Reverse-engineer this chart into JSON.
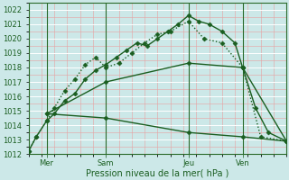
{
  "xlabel": "Pression niveau de la mer( hPa )",
  "ylim": [
    1012,
    1022.5
  ],
  "xlim": [
    0,
    100
  ],
  "bg_color": "#cce8e8",
  "line_color": "#1a5e20",
  "xtick_positions": [
    7,
    30,
    62,
    83
  ],
  "xtick_labels": [
    "Mer",
    "Sam",
    "Jeu",
    "Ven"
  ],
  "ytick_values": [
    1012,
    1013,
    1014,
    1015,
    1016,
    1017,
    1018,
    1019,
    1020,
    1021,
    1022
  ],
  "vline_positions": [
    7,
    30,
    62,
    83
  ],
  "lines": [
    {
      "x": [
        0,
        3,
        7,
        10,
        14,
        18,
        22,
        26,
        30,
        34,
        38,
        42,
        46,
        50,
        54,
        58,
        62,
        66,
        70,
        75,
        80,
        83,
        88,
        93,
        100
      ],
      "y": [
        1012.2,
        1013.2,
        1014.3,
        1014.8,
        1015.7,
        1016.2,
        1017.2,
        1017.8,
        1018.2,
        1018.7,
        1019.2,
        1019.7,
        1019.5,
        1020.0,
        1020.5,
        1021.0,
        1021.6,
        1021.2,
        1021.0,
        1020.5,
        1019.7,
        1018.0,
        1015.2,
        1013.5,
        1012.9
      ],
      "style": "-",
      "marker": "D",
      "markersize": 2.5,
      "linewidth": 1.0
    },
    {
      "x": [
        0,
        3,
        7,
        10,
        14,
        18,
        22,
        26,
        30,
        35,
        40,
        45,
        50,
        55,
        62,
        68,
        75,
        83,
        90,
        100
      ],
      "y": [
        1012.2,
        1013.2,
        1014.3,
        1015.2,
        1016.4,
        1017.2,
        1018.2,
        1018.7,
        1018.0,
        1018.3,
        1019.0,
        1019.7,
        1020.3,
        1020.5,
        1021.2,
        1020.0,
        1019.7,
        1018.0,
        1013.2,
        1012.9
      ],
      "style": ":",
      "marker": "D",
      "markersize": 2.5,
      "linewidth": 1.0
    },
    {
      "x": [
        7,
        30,
        62,
        83,
        100
      ],
      "y": [
        1014.8,
        1014.5,
        1013.5,
        1013.2,
        1012.9
      ],
      "style": "-",
      "marker": "D",
      "markersize": 2.5,
      "linewidth": 1.0
    },
    {
      "x": [
        7,
        30,
        62,
        83,
        100
      ],
      "y": [
        1014.8,
        1017.0,
        1018.3,
        1018.0,
        1012.9
      ],
      "style": "-",
      "marker": "D",
      "markersize": 2.5,
      "linewidth": 1.0
    }
  ]
}
